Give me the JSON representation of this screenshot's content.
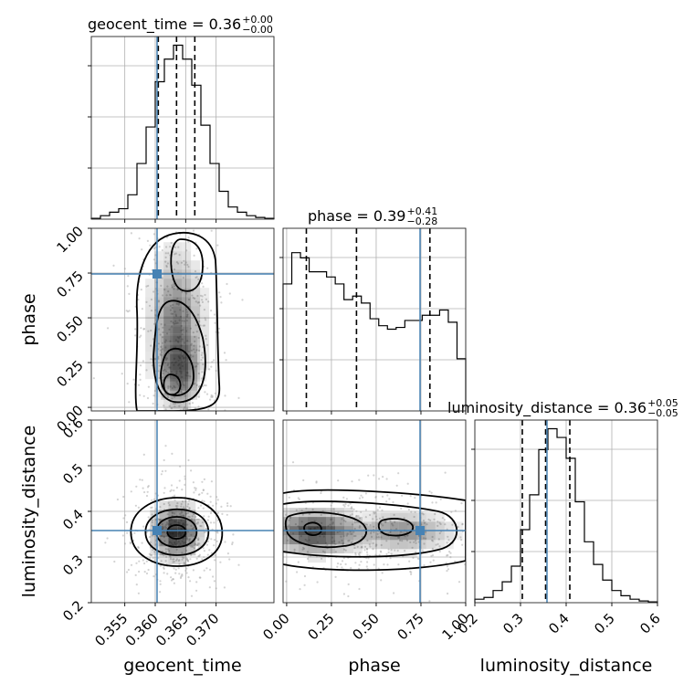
{
  "chart_data": {
    "type": "corner",
    "parameters": [
      {
        "key": "geocent_time",
        "label": "geocent_time",
        "range": [
          0.3495,
          0.3795
        ],
        "ticks": [
          0.355,
          0.36,
          0.365,
          0.37
        ],
        "tick_labels": [
          "0.355",
          "0.360",
          "0.365",
          "0.370"
        ],
        "truth": 0.3603,
        "title": {
          "name": "geocent_time",
          "median": "0.36",
          "plus": "+0.00",
          "minus": "−0.00"
        },
        "quantiles": [
          0.3605,
          0.3635,
          0.3665
        ],
        "hist": [
          0.5,
          2,
          4,
          6,
          14,
          32,
          53,
          79,
          92,
          100,
          92,
          77,
          54,
          32,
          16,
          7,
          4,
          2,
          1,
          0.5
        ],
        "hist_ymax": 105
      },
      {
        "key": "phase",
        "label": "phase",
        "range": [
          -0.02,
          1.0
        ],
        "ticks": [
          0.0,
          0.25,
          0.5,
          0.75,
          1.0
        ],
        "tick_labels": [
          "0.00",
          "0.25",
          "0.50",
          "0.75",
          "1.00"
        ],
        "truth": 0.745,
        "title": {
          "name": "phase",
          "median": "0.39",
          "plus": "+0.41",
          "minus": "−0.28"
        },
        "quantiles": [
          0.11,
          0.39,
          0.8
        ],
        "hist": [
          73,
          91,
          88,
          80,
          80,
          77,
          73,
          64,
          66,
          62,
          53,
          49,
          47,
          48,
          52,
          52,
          55,
          55,
          58,
          51,
          30
        ],
        "hist_ymax": 105
      },
      {
        "key": "luminosity_distance",
        "label": "luminosity_distance",
        "range": [
          0.2,
          0.6
        ],
        "ticks": [
          0.2,
          0.3,
          0.4,
          0.5,
          0.6
        ],
        "tick_labels": [
          "0.2",
          "0.3",
          "0.4",
          "0.5",
          "0.6"
        ],
        "truth": 0.358,
        "title": {
          "name": "luminosity_distance",
          "median": "0.36",
          "plus": "+0.05",
          "minus": "−0.05"
        },
        "quantiles": [
          0.304,
          0.355,
          0.408
        ],
        "hist": [
          2,
          3,
          7,
          12,
          21,
          42,
          62,
          88,
          100,
          95,
          83,
          58,
          35,
          22,
          13,
          7,
          4,
          2,
          1,
          0.5
        ],
        "hist_ymax": 105
      }
    ],
    "truth_color": "#4682b4",
    "grid": true,
    "colors": {
      "truth": "#4682b4",
      "contour": "#000000",
      "hist": "#000000",
      "density_dark": "#000000",
      "scatter": "#bdbdbd"
    }
  }
}
